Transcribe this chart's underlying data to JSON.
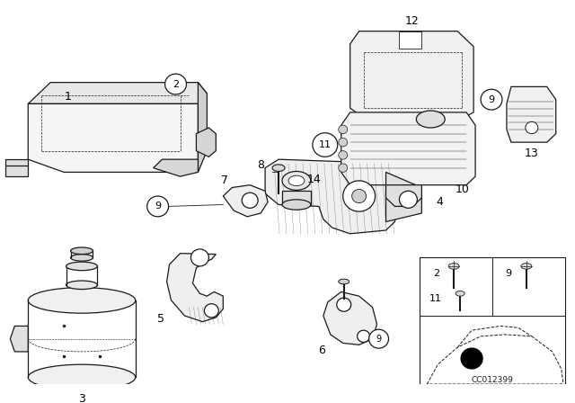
{
  "bg_color": "#ffffff",
  "lc": "#1a1a1a",
  "watermark": "CC012399",
  "figsize": [
    6.4,
    4.48
  ],
  "dpi": 100
}
